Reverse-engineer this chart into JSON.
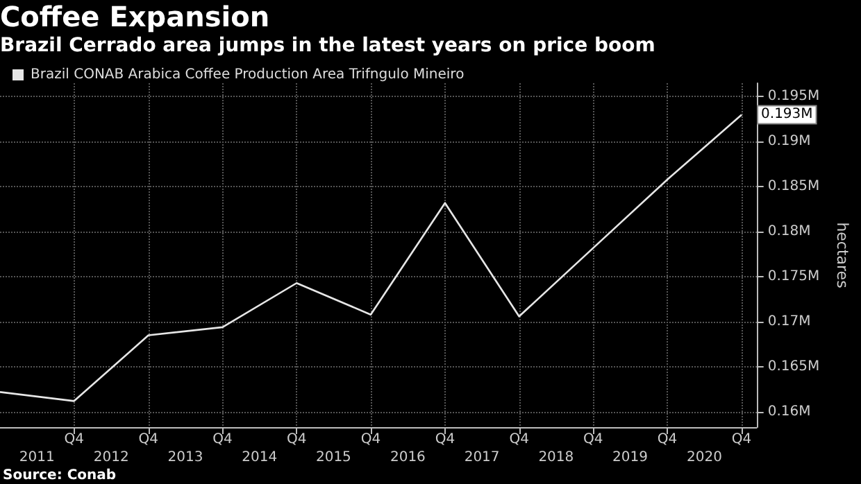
{
  "chart_data": {
    "type": "line",
    "title": "Coffee Expansion",
    "subtitle": "Brazil Cerrado area jumps in the latest years on price boom",
    "ylabel": "hectares",
    "annotations": [
      "Source: Conab"
    ],
    "x": [
      "2010-12-31",
      "2011-12-31",
      "2012-12-31",
      "2013-12-31",
      "2014-12-31",
      "2015-12-31",
      "2016-12-31",
      "2017-12-31",
      "2018-12-31",
      "2019-12-31",
      "2020-12-31"
    ],
    "series": [
      {
        "name": "Brazil CONAB Arabica Coffee Production Area Trifngulo Mineiro",
        "color": "#e6e6e6",
        "values": [
          0.1622,
          0.1612,
          0.1685,
          0.1694,
          0.1743,
          0.1708,
          0.1832,
          0.1706,
          0.1782,
          0.1858,
          0.193
        ],
        "value_labels": [
          null,
          null,
          null,
          null,
          null,
          null,
          null,
          null,
          null,
          null,
          "0.193M"
        ]
      }
    ],
    "xlim": [
      "2010-12-31",
      "2021-03-15"
    ],
    "xticks": [
      {
        "value": "2011-12-31",
        "label": "Q4"
      },
      {
        "value": "2012-12-31",
        "label": "Q4"
      },
      {
        "value": "2013-12-31",
        "label": "Q4"
      },
      {
        "value": "2014-12-31",
        "label": "Q4"
      },
      {
        "value": "2015-12-31",
        "label": "Q4"
      },
      {
        "value": "2016-12-31",
        "label": "Q4"
      },
      {
        "value": "2017-12-31",
        "label": "Q4"
      },
      {
        "value": "2018-12-31",
        "label": "Q4"
      },
      {
        "value": "2019-12-31",
        "label": "Q4"
      },
      {
        "value": "2020-12-31",
        "label": "Q4"
      }
    ],
    "x2lim": [
      "2010-12-31",
      "2021-03-15"
    ],
    "x2ticks": [
      {
        "value": "2011-07-01",
        "label": "2011"
      },
      {
        "value": "2012-07-01",
        "label": "2012"
      },
      {
        "value": "2013-07-01",
        "label": "2013"
      },
      {
        "value": "2014-07-01",
        "label": "2014"
      },
      {
        "value": "2015-07-01",
        "label": "2015"
      },
      {
        "value": "2016-07-01",
        "label": "2016"
      },
      {
        "value": "2017-07-01",
        "label": "2017"
      },
      {
        "value": "2018-07-01",
        "label": "2018"
      },
      {
        "value": "2019-07-01",
        "label": "2019"
      },
      {
        "value": "2020-07-01",
        "label": "2020"
      }
    ],
    "ylim": [
      0.1583,
      0.1965
    ],
    "yticks": [
      {
        "value": 0.16,
        "label": "0.16M"
      },
      {
        "value": 0.165,
        "label": "0.165M"
      },
      {
        "value": 0.17,
        "label": "0.17M"
      },
      {
        "value": 0.175,
        "label": "0.175M"
      },
      {
        "value": 0.18,
        "label": "0.18M"
      },
      {
        "value": 0.185,
        "label": "0.185M"
      },
      {
        "value": 0.19,
        "label": "0.19M"
      },
      {
        "value": 0.195,
        "label": "0.195M"
      }
    ],
    "grid": true,
    "legend": "top left",
    "marker": "none",
    "line_style": "solid"
  }
}
